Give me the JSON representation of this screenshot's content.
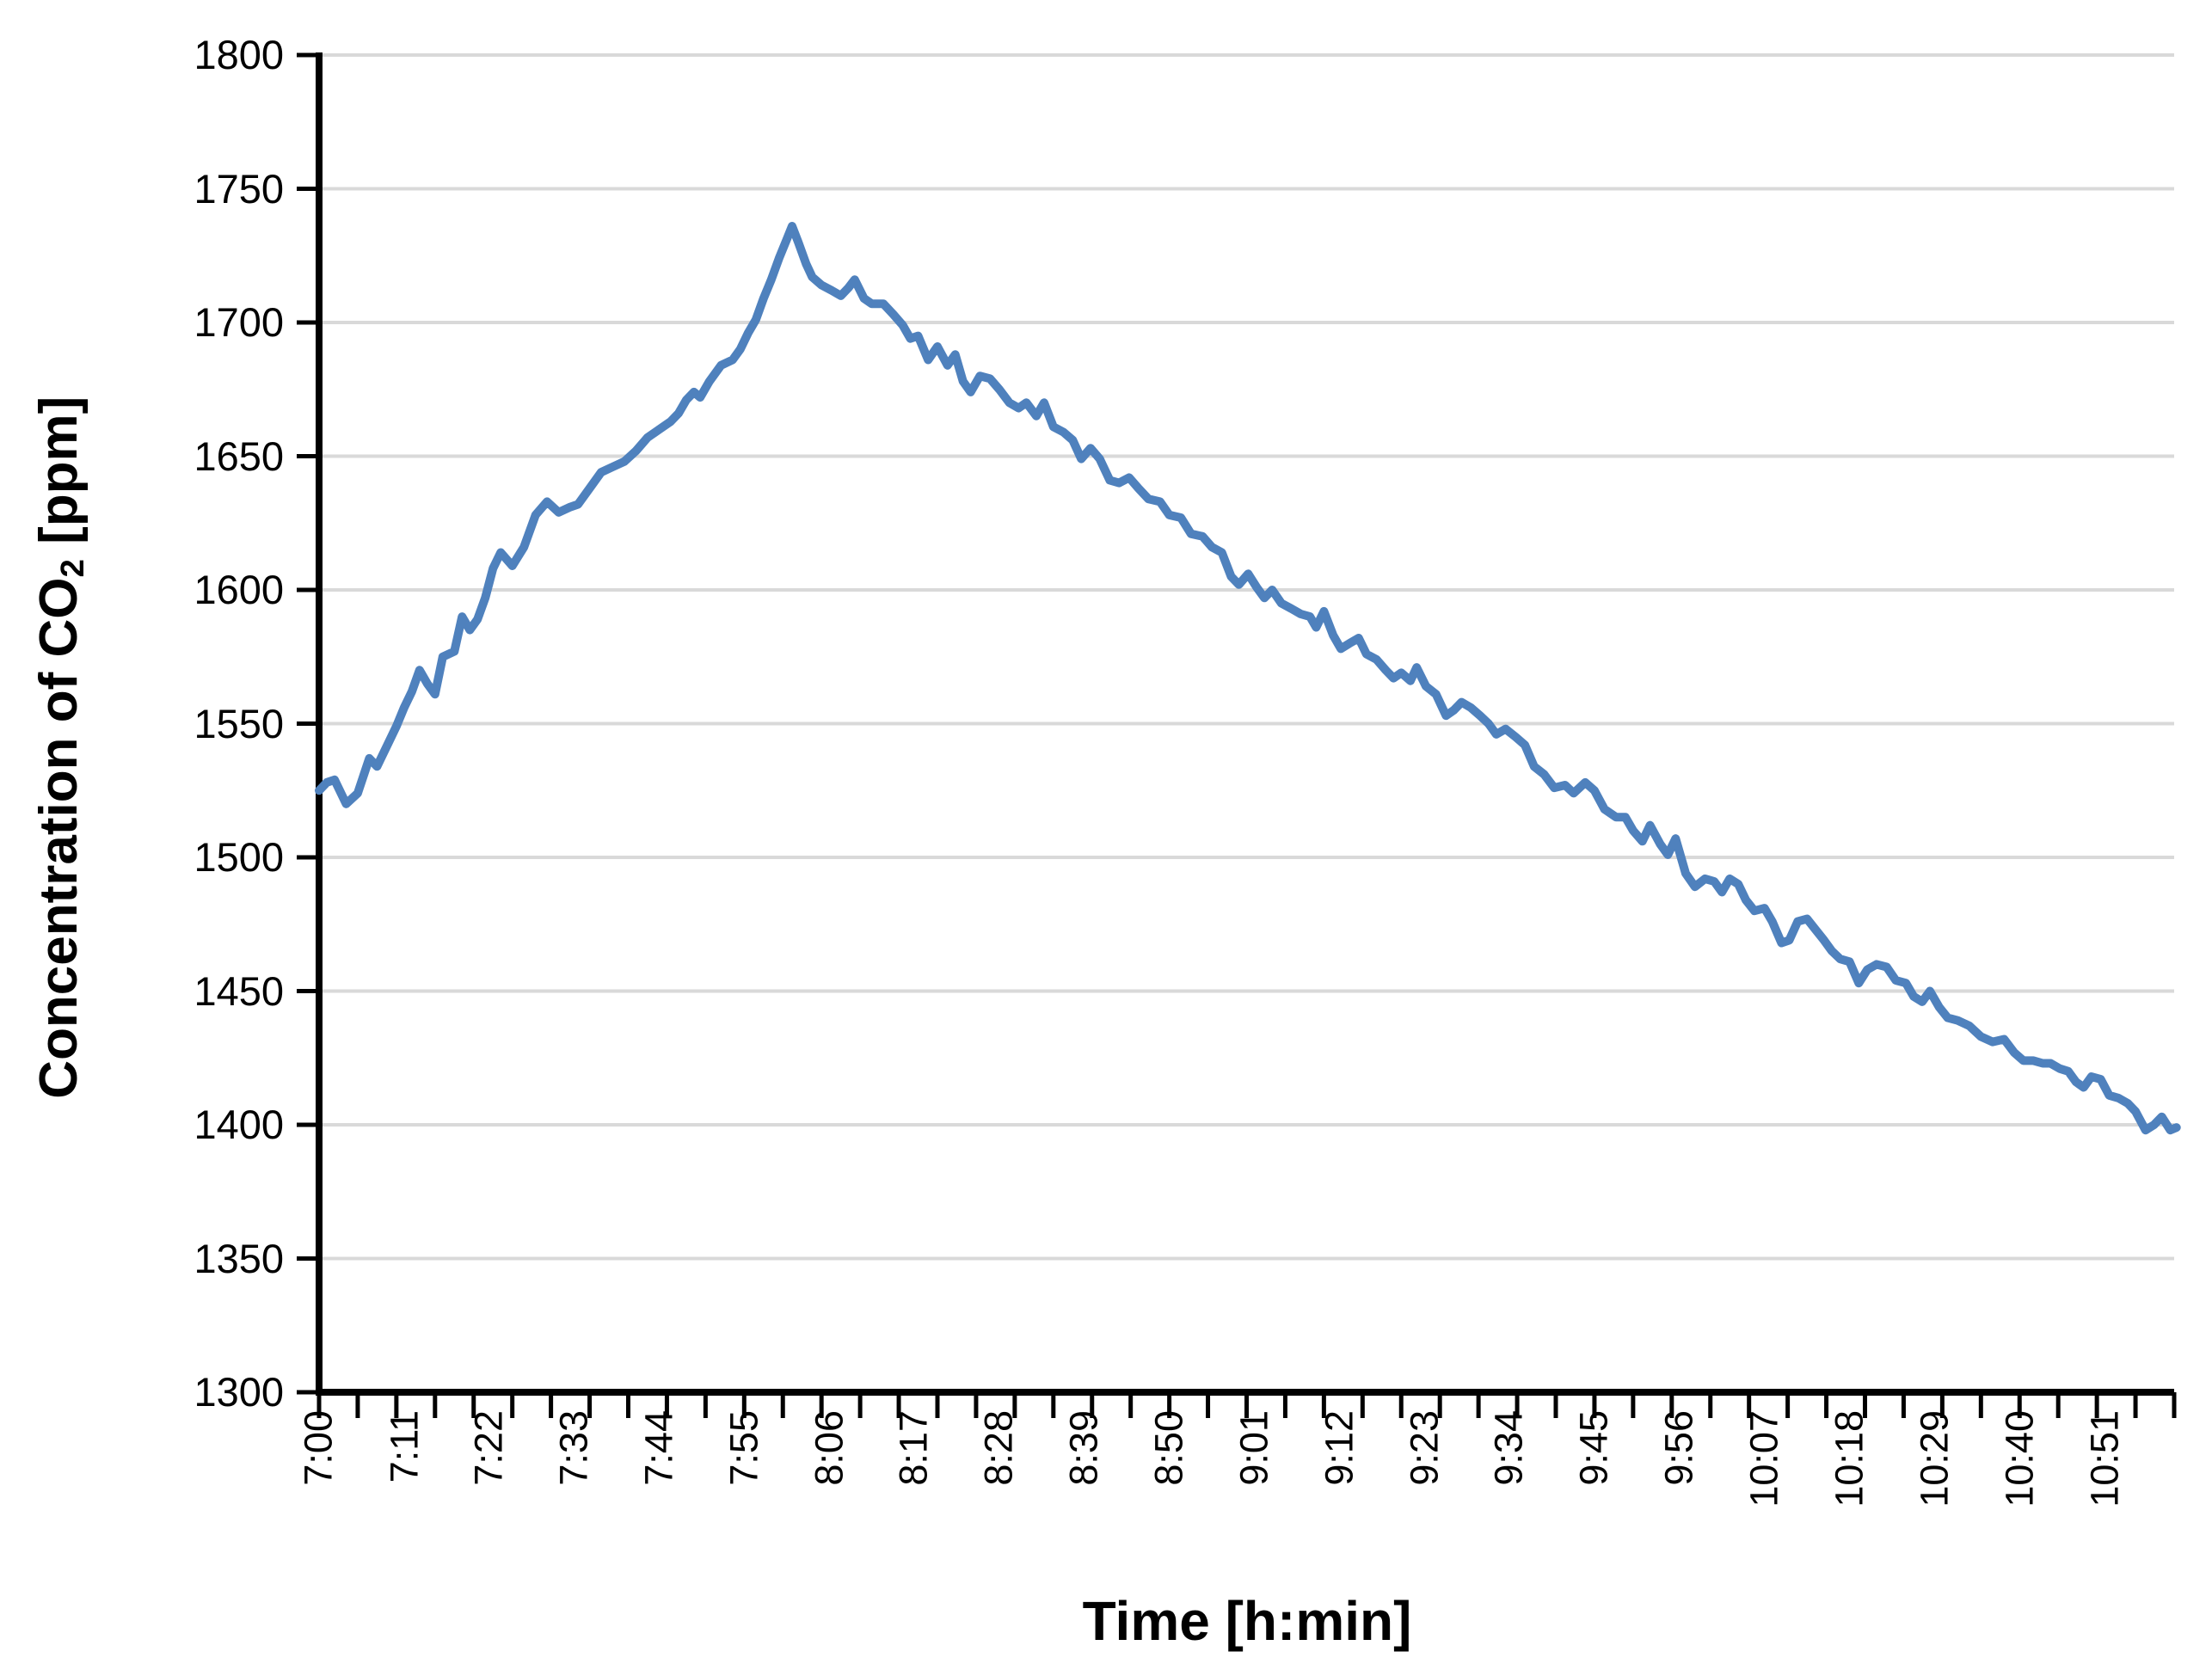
{
  "chart_data": {
    "type": "line",
    "title": "",
    "xlabel": "Time [h:min]",
    "ylabel": "Concentration of CO2 [ppm]",
    "ylabel_parts": {
      "pre": "Concentration of CO",
      "sub": "2",
      "post": " [ppm]"
    },
    "ylim": [
      1300,
      1800
    ],
    "y_tick_step": 50,
    "y_tick_values": [
      1800,
      1750,
      1700,
      1650,
      1600,
      1550,
      1500,
      1450,
      1400,
      1350,
      1300
    ],
    "x_axis_start": "7:00",
    "x_axis_end": "11:00",
    "x_span_minutes": 240,
    "x_minor_tick_every_min": 5,
    "x_label_every_min": 11,
    "x_labels": [
      "7:00",
      "7:11",
      "7:22",
      "7:33",
      "7:44",
      "7:55",
      "8:06",
      "8:17",
      "8:28",
      "8:39",
      "8:50",
      "9:01",
      "9:12",
      "9:23",
      "9:34",
      "9:45",
      "9:56",
      "10:07",
      "10:18",
      "10:29",
      "10:40",
      "10:51"
    ],
    "grid": true,
    "legend": "none",
    "colors": {
      "line": "#4f81bd",
      "grid": "#d9d9d9",
      "axis": "#000000",
      "text": "#000000"
    },
    "series": [
      {
        "points_min_ppm": [
          [
            0,
            1525
          ],
          [
            1,
            1528
          ],
          [
            2,
            1529
          ],
          [
            3.5,
            1520
          ],
          [
            5,
            1524
          ],
          [
            6.5,
            1537
          ],
          [
            7.5,
            1534
          ],
          [
            9,
            1543
          ],
          [
            10,
            1549
          ],
          [
            11,
            1556
          ],
          [
            12,
            1562
          ],
          [
            13,
            1570
          ],
          [
            14,
            1565
          ],
          [
            15,
            1561
          ],
          [
            16,
            1575
          ],
          [
            17.5,
            1577
          ],
          [
            18.5,
            1590
          ],
          [
            19.5,
            1585
          ],
          [
            20.5,
            1589
          ],
          [
            21.5,
            1597
          ],
          [
            22.5,
            1608
          ],
          [
            23.5,
            1614
          ],
          [
            25,
            1609
          ],
          [
            26.5,
            1616
          ],
          [
            28,
            1628
          ],
          [
            29.5,
            1633
          ],
          [
            31,
            1629
          ],
          [
            32.5,
            1631
          ],
          [
            33.5,
            1632
          ],
          [
            35,
            1638
          ],
          [
            36.5,
            1644
          ],
          [
            38,
            1646
          ],
          [
            39.5,
            1648
          ],
          [
            41,
            1652
          ],
          [
            42.5,
            1657
          ],
          [
            44,
            1660
          ],
          [
            45.5,
            1663
          ],
          [
            46.5,
            1666
          ],
          [
            47.5,
            1671
          ],
          [
            48.5,
            1674
          ],
          [
            49.3,
            1672
          ],
          [
            50.5,
            1678
          ],
          [
            52,
            1684
          ],
          [
            53.5,
            1686
          ],
          [
            54.5,
            1690
          ],
          [
            55.5,
            1696
          ],
          [
            56.5,
            1701
          ],
          [
            57.5,
            1709
          ],
          [
            58.5,
            1716
          ],
          [
            59.5,
            1724
          ],
          [
            60.5,
            1731
          ],
          [
            61.2,
            1736
          ],
          [
            62,
            1730
          ],
          [
            63,
            1722
          ],
          [
            63.8,
            1717
          ],
          [
            65,
            1714
          ],
          [
            66.3,
            1712
          ],
          [
            67.5,
            1710
          ],
          [
            68.5,
            1713
          ],
          [
            69.3,
            1716
          ],
          [
            70.5,
            1709
          ],
          [
            71.5,
            1707
          ],
          [
            73,
            1707
          ],
          [
            74.3,
            1703
          ],
          [
            75.5,
            1699
          ],
          [
            76.5,
            1694
          ],
          [
            77.5,
            1695
          ],
          [
            78.8,
            1686
          ],
          [
            80,
            1691
          ],
          [
            81.3,
            1684
          ],
          [
            82.3,
            1688
          ],
          [
            83.3,
            1678
          ],
          [
            84.3,
            1674
          ],
          [
            85.5,
            1680
          ],
          [
            86.8,
            1679
          ],
          [
            88,
            1675
          ],
          [
            89.3,
            1670
          ],
          [
            90.5,
            1668
          ],
          [
            91.5,
            1670
          ],
          [
            92.8,
            1665
          ],
          [
            93.8,
            1670
          ],
          [
            95,
            1661
          ],
          [
            96.3,
            1659
          ],
          [
            97.5,
            1656
          ],
          [
            98.6,
            1649
          ],
          [
            99.8,
            1653
          ],
          [
            101,
            1649
          ],
          [
            102.3,
            1641
          ],
          [
            103.5,
            1640
          ],
          [
            104.8,
            1642
          ],
          [
            106,
            1638
          ],
          [
            107.3,
            1634
          ],
          [
            108.8,
            1633
          ],
          [
            110,
            1628
          ],
          [
            111.5,
            1627
          ],
          [
            112.8,
            1621
          ],
          [
            114.3,
            1620
          ],
          [
            115.5,
            1616
          ],
          [
            116.8,
            1614
          ],
          [
            118,
            1605
          ],
          [
            119,
            1602
          ],
          [
            120.2,
            1606
          ],
          [
            121.3,
            1601
          ],
          [
            122.3,
            1597
          ],
          [
            123.3,
            1600
          ],
          [
            124.5,
            1595
          ],
          [
            125.8,
            1593
          ],
          [
            127,
            1591
          ],
          [
            128.2,
            1590
          ],
          [
            129,
            1586
          ],
          [
            130,
            1592
          ],
          [
            131.2,
            1583
          ],
          [
            132.2,
            1578
          ],
          [
            133.3,
            1580
          ],
          [
            134.5,
            1582
          ],
          [
            135.5,
            1576
          ],
          [
            136.8,
            1574
          ],
          [
            138,
            1570
          ],
          [
            139,
            1567
          ],
          [
            140,
            1569
          ],
          [
            141.2,
            1566
          ],
          [
            142,
            1571
          ],
          [
            143.2,
            1564
          ],
          [
            144.5,
            1561
          ],
          [
            145.8,
            1553
          ],
          [
            146.8,
            1555
          ],
          [
            147.8,
            1558
          ],
          [
            149,
            1556
          ],
          [
            150.2,
            1553
          ],
          [
            151.3,
            1550
          ],
          [
            152.3,
            1546
          ],
          [
            153.5,
            1548
          ],
          [
            154.8,
            1545
          ],
          [
            156,
            1542
          ],
          [
            157.2,
            1534
          ],
          [
            158.5,
            1531
          ],
          [
            159.8,
            1526
          ],
          [
            161.2,
            1527
          ],
          [
            162.3,
            1524
          ],
          [
            163.8,
            1528
          ],
          [
            165,
            1525
          ],
          [
            166.3,
            1518
          ],
          [
            167.8,
            1515
          ],
          [
            169,
            1515
          ],
          [
            170,
            1510
          ],
          [
            171.2,
            1506
          ],
          [
            172.2,
            1512
          ],
          [
            173.5,
            1505
          ],
          [
            174.5,
            1501
          ],
          [
            175.5,
            1507
          ],
          [
            176.8,
            1494
          ],
          [
            178,
            1489
          ],
          [
            179.3,
            1492
          ],
          [
            180.5,
            1491
          ],
          [
            181.5,
            1487
          ],
          [
            182.5,
            1492
          ],
          [
            183.6,
            1490
          ],
          [
            184.6,
            1484
          ],
          [
            185.7,
            1480
          ],
          [
            187,
            1481
          ],
          [
            188,
            1476
          ],
          [
            189.2,
            1468
          ],
          [
            190.2,
            1469
          ],
          [
            191.3,
            1476
          ],
          [
            192.5,
            1477
          ],
          [
            193.6,
            1473
          ],
          [
            194.7,
            1469
          ],
          [
            195.7,
            1465
          ],
          [
            196.8,
            1462
          ],
          [
            198,
            1461
          ],
          [
            199.2,
            1453
          ],
          [
            200.3,
            1458
          ],
          [
            201.5,
            1460
          ],
          [
            202.8,
            1459
          ],
          [
            204,
            1454
          ],
          [
            205.3,
            1453
          ],
          [
            206.3,
            1448
          ],
          [
            207.4,
            1446
          ],
          [
            208.4,
            1450
          ],
          [
            209.6,
            1444
          ],
          [
            210.7,
            1440
          ],
          [
            212,
            1439
          ],
          [
            213.5,
            1437
          ],
          [
            215,
            1433
          ],
          [
            216.5,
            1431
          ],
          [
            218,
            1432
          ],
          [
            219.3,
            1427
          ],
          [
            220.5,
            1424
          ],
          [
            221.8,
            1424
          ],
          [
            223,
            1423
          ],
          [
            224,
            1423
          ],
          [
            225.2,
            1421
          ],
          [
            226.3,
            1420
          ],
          [
            227.3,
            1416
          ],
          [
            228.3,
            1414
          ],
          [
            229.3,
            1418
          ],
          [
            230.5,
            1417
          ],
          [
            231.6,
            1411
          ],
          [
            232.8,
            1410
          ],
          [
            234,
            1408
          ],
          [
            235,
            1405
          ],
          [
            236.3,
            1398
          ],
          [
            237.4,
            1400
          ],
          [
            238.4,
            1403
          ],
          [
            239.5,
            1398
          ],
          [
            240.3,
            1399
          ]
        ]
      }
    ]
  }
}
